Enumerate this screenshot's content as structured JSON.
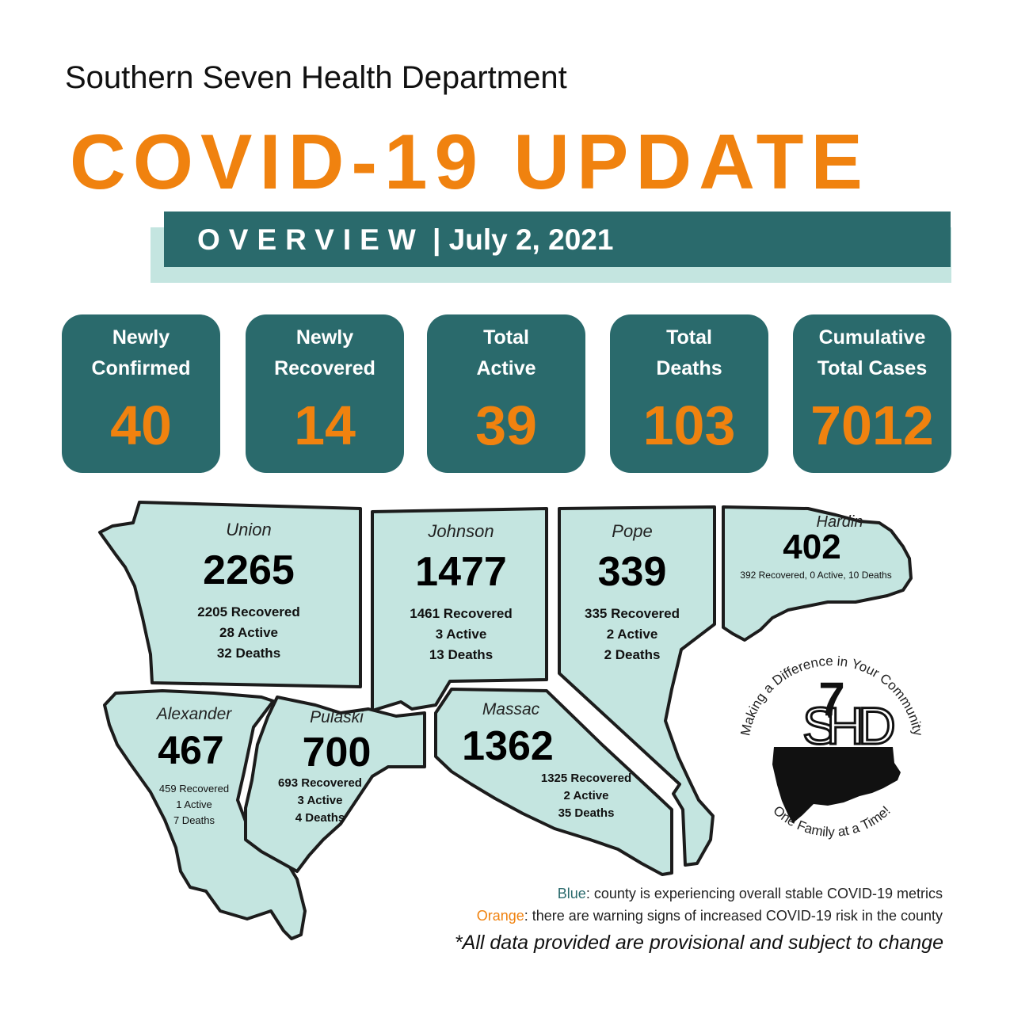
{
  "header": {
    "department": "Southern Seven Health Department",
    "headline": "COVID-19 UPDATE",
    "overview_word": "OVERVIEW",
    "overview_date": " | July 2, 2021"
  },
  "stats": [
    {
      "label_line1": "Newly",
      "label_line2": "Confirmed",
      "value": "40"
    },
    {
      "label_line1": "Newly",
      "label_line2": "Recovered",
      "value": "14"
    },
    {
      "label_line1": "Total",
      "label_line2": "Active",
      "value": "39"
    },
    {
      "label_line1": "Total",
      "label_line2": "Deaths",
      "value": "103"
    },
    {
      "label_line1": "Cumulative",
      "label_line2": "Total Cases",
      "value": "7012"
    }
  ],
  "counties": {
    "union": {
      "name": "Union",
      "total": "2265",
      "recovered": "2205 Recovered",
      "active": "28 Active",
      "deaths": "32 Deaths",
      "status": "blue"
    },
    "johnson": {
      "name": "Johnson",
      "total": "1477",
      "recovered": "1461 Recovered",
      "active": "3 Active",
      "deaths": "13 Deaths",
      "status": "blue"
    },
    "pope": {
      "name": "Pope",
      "total": "339",
      "recovered": "335 Recovered",
      "active": "2 Active",
      "deaths": "2 Deaths",
      "status": "blue"
    },
    "hardin": {
      "name": "Hardin",
      "total": "402",
      "summary": "392 Recovered, 0 Active, 10 Deaths",
      "status": "blue"
    },
    "alexander": {
      "name": "Alexander",
      "total": "467",
      "recovered": "459 Recovered",
      "active": "1 Active",
      "deaths": "7 Deaths",
      "status": "blue"
    },
    "pulaski": {
      "name": "Pulaski",
      "total": "700",
      "recovered": "693 Recovered",
      "active": "3 Active",
      "deaths": "4 Deaths",
      "status": "blue"
    },
    "massac": {
      "name": "Massac",
      "total": "1362",
      "recovered": "1325 Recovered",
      "active": "2 Active",
      "deaths": "35 Deaths",
      "status": "blue"
    }
  },
  "logo": {
    "top_arc": "Making a Difference in Your Community",
    "bottom_arc": "One Family at a Time!",
    "mark": "S7HD"
  },
  "legend": {
    "blue_key": "Blue",
    "blue_text": ": county is experiencing overall stable COVID-19 metrics",
    "orange_key": "Orange",
    "orange_text": ": there are warning signs of increased COVID-19 risk in the county",
    "disclaimer": "*All data provided are provisional and subject to change"
  },
  "colors": {
    "teal": "#2a6a6c",
    "orange": "#f0820f",
    "county_fill": "#c4e5e0",
    "legend_blue": "#2a6a6c"
  }
}
